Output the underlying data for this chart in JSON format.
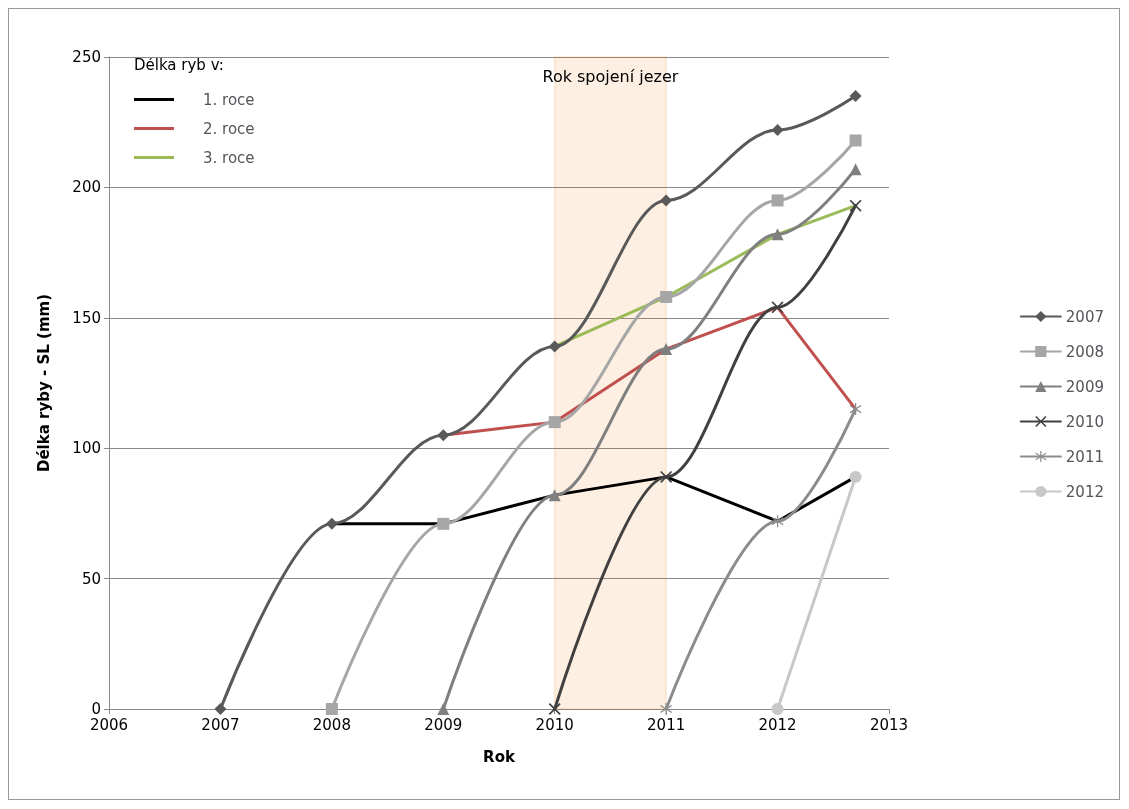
{
  "chart_data": {
    "type": "line",
    "xlabel": "Rok",
    "ylabel": "Délka ryby - SL (mm)",
    "legend_title": "Délka ryb v:",
    "xlim": [
      2006,
      2013
    ],
    "xticks": [
      2006,
      2007,
      2008,
      2009,
      2010,
      2011,
      2012,
      2013
    ],
    "ylim": [
      0,
      250
    ],
    "yticks": [
      0,
      50,
      100,
      150,
      200,
      250
    ],
    "grid": "y",
    "legend": "right",
    "line_style": "solid",
    "bands": [
      {
        "axis": "x",
        "from": 2010,
        "to": 2011,
        "label": "Rok spojení jezer",
        "color": "#f07f09"
      }
    ],
    "series": [
      {
        "name": "2007",
        "color": "#595959",
        "marker": "diamond",
        "x": [
          2007,
          2008,
          2009,
          2010,
          2011,
          2012,
          2012.7
        ],
        "values": [
          0,
          71,
          105,
          139,
          195,
          222,
          235
        ]
      },
      {
        "name": "2008",
        "color": "#a6a6a6",
        "marker": "square",
        "x": [
          2008,
          2009,
          2010,
          2011,
          2012,
          2012.7
        ],
        "values": [
          0,
          71,
          110,
          158,
          195,
          218
        ]
      },
      {
        "name": "2009",
        "color": "#7f7f7f",
        "marker": "triangle",
        "x": [
          2009,
          2010,
          2011,
          2012,
          2012.7
        ],
        "values": [
          0,
          82,
          138,
          182,
          207
        ]
      },
      {
        "name": "2010",
        "color": "#404040",
        "marker": "cross",
        "x": [
          2010,
          2011,
          2012,
          2012.7
        ],
        "values": [
          0,
          89,
          154,
          193
        ]
      },
      {
        "name": "2011",
        "color": "#8c8c8c",
        "marker": "star",
        "x": [
          2011,
          2012,
          2012.7
        ],
        "values": [
          0,
          72,
          115
        ]
      },
      {
        "name": "2012",
        "color": "#c8c8c8",
        "marker": "circle",
        "x": [
          2012,
          2012.7
        ],
        "values": [
          0,
          89
        ]
      },
      {
        "name": "1. roce",
        "color": "#000000",
        "marker": "none",
        "x": [
          2008,
          2009,
          2010,
          2011,
          2012,
          2012.7
        ],
        "values": [
          71,
          71,
          82,
          89,
          72,
          89
        ]
      },
      {
        "name": "2. roce",
        "color": "#c0504d",
        "marker": "none",
        "x": [
          2009,
          2010,
          2011,
          2012,
          2012.7
        ],
        "values": [
          105,
          110,
          138,
          154,
          115
        ]
      },
      {
        "name": "3. roce",
        "color": "#9bbb59",
        "marker": "none",
        "x": [
          2010,
          2011,
          2012,
          2012.7
        ],
        "values": [
          139,
          158,
          182,
          193
        ]
      }
    ]
  }
}
